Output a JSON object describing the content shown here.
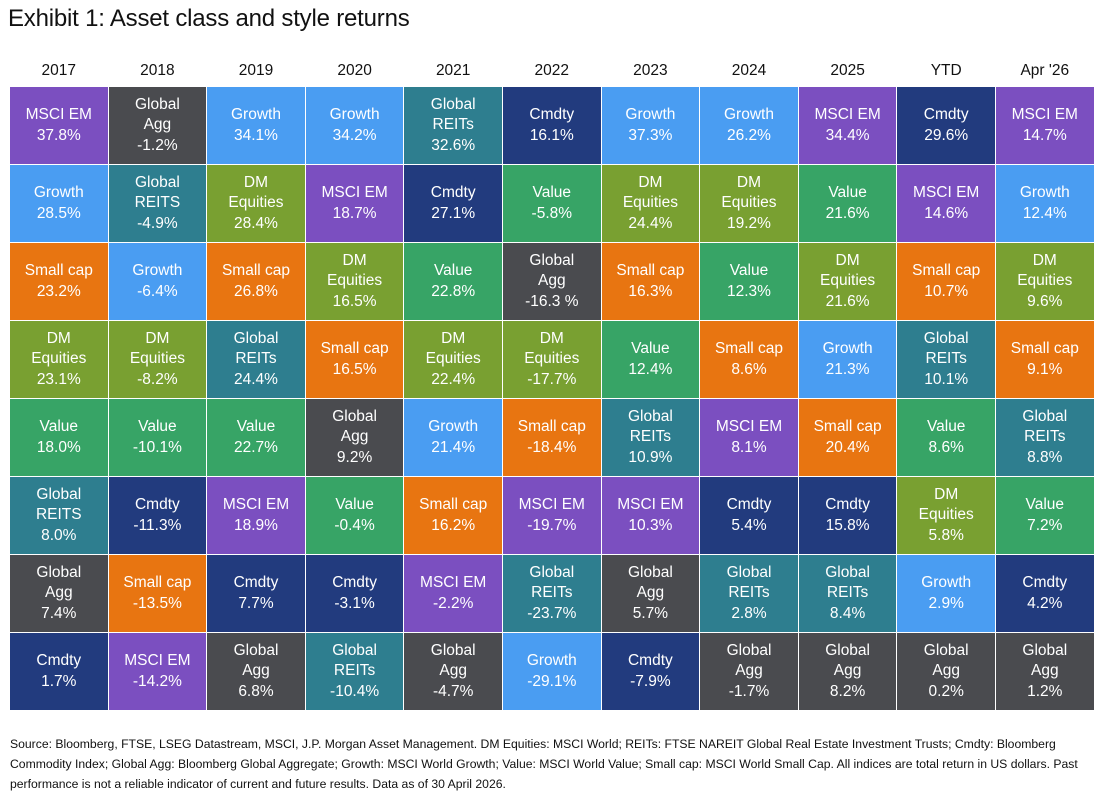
{
  "title": "Exhibit 1: Asset class and style returns",
  "footnote": "Source: Bloomberg, FTSE, LSEG Datastream, MSCI, J.P. Morgan Asset Management. DM Equities: MSCI World; REITs: FTSE NAREIT Global Real Estate Investment Trusts; Cmdty: Bloomberg Commodity Index; Global Agg: Bloomberg Global Aggregate; Growth: MSCI World Growth; Value: MSCI World Value; Small cap: MSCI World Small Cap. All indices are total return in US dollars. Past performance is not a reliable indicator of current and future results. Data as of 30 April 2026.",
  "colors": {
    "MSCI EM": "#7b4fc0",
    "Global Agg": "#4a4b4f",
    "Growth": "#4a9df2",
    "Global REITs": "#2e7e8f",
    "Cmdty": "#223b7e",
    "DM Equities": "#79a031",
    "Small cap": "#e87511",
    "Value": "#37a466"
  },
  "chart_data": {
    "type": "table",
    "columns": [
      "2017",
      "2018",
      "2019",
      "2020",
      "2021",
      "2022",
      "2023",
      "2024",
      "2025",
      "YTD",
      "Apr '26"
    ],
    "cells": [
      [
        {
          "asset": "MSCI EM",
          "lines": [
            "MSCI EM"
          ],
          "value": "37.8%"
        },
        {
          "asset": "Growth",
          "lines": [
            "Growth"
          ],
          "value": "28.5%"
        },
        {
          "asset": "Small cap",
          "lines": [
            "Small cap"
          ],
          "value": "23.2%"
        },
        {
          "asset": "DM Equities",
          "lines": [
            "DM",
            "Equities"
          ],
          "value": "23.1%"
        },
        {
          "asset": "Value",
          "lines": [
            "Value"
          ],
          "value": "18.0%"
        },
        {
          "asset": "Global REITs",
          "lines": [
            "Global",
            "REITS"
          ],
          "value": "8.0%"
        },
        {
          "asset": "Global Agg",
          "lines": [
            "Global",
            "Agg"
          ],
          "value": "7.4%"
        },
        {
          "asset": "Cmdty",
          "lines": [
            "Cmdty"
          ],
          "value": "1.7%"
        }
      ],
      [
        {
          "asset": "Global Agg",
          "lines": [
            "Global",
            "Agg"
          ],
          "value": "-1.2%"
        },
        {
          "asset": "Global REITs",
          "lines": [
            "Global",
            "REITS"
          ],
          "value": "-4.9%"
        },
        {
          "asset": "Growth",
          "lines": [
            "Growth"
          ],
          "value": "-6.4%"
        },
        {
          "asset": "DM Equities",
          "lines": [
            "DM",
            "Equities"
          ],
          "value": "-8.2%"
        },
        {
          "asset": "Value",
          "lines": [
            "Value"
          ],
          "value": "-10.1%"
        },
        {
          "asset": "Cmdty",
          "lines": [
            "Cmdty"
          ],
          "value": "-11.3%"
        },
        {
          "asset": "Small cap",
          "lines": [
            "Small cap"
          ],
          "value": "-13.5%"
        },
        {
          "asset": "MSCI EM",
          "lines": [
            "MSCI EM"
          ],
          "value": "-14.2%"
        }
      ],
      [
        {
          "asset": "Growth",
          "lines": [
            "Growth"
          ],
          "value": "34.1%"
        },
        {
          "asset": "DM Equities",
          "lines": [
            "DM",
            "Equities"
          ],
          "value": "28.4%"
        },
        {
          "asset": "Small cap",
          "lines": [
            "Small cap"
          ],
          "value": "26.8%"
        },
        {
          "asset": "Global REITs",
          "lines": [
            "Global",
            "REITs"
          ],
          "value": "24.4%"
        },
        {
          "asset": "Value",
          "lines": [
            "Value"
          ],
          "value": "22.7%"
        },
        {
          "asset": "MSCI EM",
          "lines": [
            "MSCI EM"
          ],
          "value": "18.9%"
        },
        {
          "asset": "Cmdty",
          "lines": [
            "Cmdty"
          ],
          "value": "7.7%"
        },
        {
          "asset": "Global Agg",
          "lines": [
            "Global",
            "Agg"
          ],
          "value": "6.8%"
        }
      ],
      [
        {
          "asset": "Growth",
          "lines": [
            "Growth"
          ],
          "value": "34.2%"
        },
        {
          "asset": "MSCI EM",
          "lines": [
            "MSCI EM"
          ],
          "value": "18.7%"
        },
        {
          "asset": "DM Equities",
          "lines": [
            "DM",
            "Equities"
          ],
          "value": "16.5%"
        },
        {
          "asset": "Small cap",
          "lines": [
            "Small cap"
          ],
          "value": "16.5%"
        },
        {
          "asset": "Global Agg",
          "lines": [
            "Global",
            "Agg"
          ],
          "value": "9.2%"
        },
        {
          "asset": "Value",
          "lines": [
            "Value"
          ],
          "value": "-0.4%"
        },
        {
          "asset": "Cmdty",
          "lines": [
            "Cmdty"
          ],
          "value": "-3.1%"
        },
        {
          "asset": "Global REITs",
          "lines": [
            "Global",
            "REITs"
          ],
          "value": "-10.4%"
        }
      ],
      [
        {
          "asset": "Global REITs",
          "lines": [
            "Global",
            "REITs"
          ],
          "value": "32.6%"
        },
        {
          "asset": "Cmdty",
          "lines": [
            "Cmdty"
          ],
          "value": "27.1%"
        },
        {
          "asset": "Value",
          "lines": [
            "Value"
          ],
          "value": "22.8%"
        },
        {
          "asset": "DM Equities",
          "lines": [
            "DM",
            "Equities"
          ],
          "value": "22.4%"
        },
        {
          "asset": "Growth",
          "lines": [
            "Growth"
          ],
          "value": "21.4%"
        },
        {
          "asset": "Small cap",
          "lines": [
            "Small cap"
          ],
          "value": "16.2%"
        },
        {
          "asset": "MSCI EM",
          "lines": [
            "MSCI EM"
          ],
          "value": "-2.2%"
        },
        {
          "asset": "Global Agg",
          "lines": [
            "Global",
            "Agg"
          ],
          "value": "-4.7%"
        }
      ],
      [
        {
          "asset": "Cmdty",
          "lines": [
            "Cmdty"
          ],
          "value": "16.1%"
        },
        {
          "asset": "Value",
          "lines": [
            "Value"
          ],
          "value": "-5.8%"
        },
        {
          "asset": "Global Agg",
          "lines": [
            "Global",
            "Agg"
          ],
          "value": "-16.3 %"
        },
        {
          "asset": "DM Equities",
          "lines": [
            "DM",
            "Equities"
          ],
          "value": "-17.7%"
        },
        {
          "asset": "Small cap",
          "lines": [
            "Small cap"
          ],
          "value": "-18.4%"
        },
        {
          "asset": "MSCI EM",
          "lines": [
            "MSCI EM"
          ],
          "value": "-19.7%"
        },
        {
          "asset": "Global REITs",
          "lines": [
            "Global",
            "REITs"
          ],
          "value": "-23.7%"
        },
        {
          "asset": "Growth",
          "lines": [
            "Growth"
          ],
          "value": "-29.1%"
        }
      ],
      [
        {
          "asset": "Growth",
          "lines": [
            "Growth"
          ],
          "value": "37.3%"
        },
        {
          "asset": "DM Equities",
          "lines": [
            "DM",
            "Equities"
          ],
          "value": "24.4%"
        },
        {
          "asset": "Small cap",
          "lines": [
            "Small cap"
          ],
          "value": "16.3%"
        },
        {
          "asset": "Value",
          "lines": [
            "Value"
          ],
          "value": "12.4%"
        },
        {
          "asset": "Global REITs",
          "lines": [
            "Global",
            "REITs"
          ],
          "value": "10.9%"
        },
        {
          "asset": "MSCI EM",
          "lines": [
            "MSCI EM"
          ],
          "value": "10.3%"
        },
        {
          "asset": "Global Agg",
          "lines": [
            "Global",
            "Agg"
          ],
          "value": "5.7%"
        },
        {
          "asset": "Cmdty",
          "lines": [
            "Cmdty"
          ],
          "value": "-7.9%"
        }
      ],
      [
        {
          "asset": "Growth",
          "lines": [
            "Growth"
          ],
          "value": "26.2%"
        },
        {
          "asset": "DM Equities",
          "lines": [
            "DM",
            "Equities"
          ],
          "value": "19.2%"
        },
        {
          "asset": "Value",
          "lines": [
            "Value"
          ],
          "value": "12.3%"
        },
        {
          "asset": "Small cap",
          "lines": [
            "Small cap"
          ],
          "value": "8.6%"
        },
        {
          "asset": "MSCI EM",
          "lines": [
            "MSCI EM"
          ],
          "value": "8.1%"
        },
        {
          "asset": "Cmdty",
          "lines": [
            "Cmdty"
          ],
          "value": "5.4%"
        },
        {
          "asset": "Global REITs",
          "lines": [
            "Global",
            "REITs"
          ],
          "value": "2.8%"
        },
        {
          "asset": "Global Agg",
          "lines": [
            "Global",
            "Agg"
          ],
          "value": "-1.7%"
        }
      ],
      [
        {
          "asset": "MSCI EM",
          "lines": [
            "MSCI EM"
          ],
          "value": "34.4%"
        },
        {
          "asset": "Value",
          "lines": [
            "Value"
          ],
          "value": "21.6%"
        },
        {
          "asset": "DM Equities",
          "lines": [
            "DM",
            "Equities"
          ],
          "value": "21.6%"
        },
        {
          "asset": "Growth",
          "lines": [
            "Growth"
          ],
          "value": "21.3%"
        },
        {
          "asset": "Small cap",
          "lines": [
            "Small cap"
          ],
          "value": "20.4%"
        },
        {
          "asset": "Cmdty",
          "lines": [
            "Cmdty"
          ],
          "value": "15.8%"
        },
        {
          "asset": "Global REITs",
          "lines": [
            "Global",
            "REITs"
          ],
          "value": "8.4%"
        },
        {
          "asset": "Global Agg",
          "lines": [
            "Global",
            "Agg"
          ],
          "value": "8.2%"
        }
      ],
      [
        {
          "asset": "Cmdty",
          "lines": [
            "Cmdty"
          ],
          "value": "29.6%"
        },
        {
          "asset": "MSCI EM",
          "lines": [
            "MSCI EM"
          ],
          "value": "14.6%"
        },
        {
          "asset": "Small cap",
          "lines": [
            "Small cap"
          ],
          "value": "10.7%"
        },
        {
          "asset": "Global REITs",
          "lines": [
            "Global",
            "REITs"
          ],
          "value": "10.1%"
        },
        {
          "asset": "Value",
          "lines": [
            "Value"
          ],
          "value": "8.6%"
        },
        {
          "asset": "DM Equities",
          "lines": [
            "DM",
            "Equities"
          ],
          "value": "5.8%"
        },
        {
          "asset": "Growth",
          "lines": [
            "Growth"
          ],
          "value": "2.9%"
        },
        {
          "asset": "Global Agg",
          "lines": [
            "Global",
            "Agg"
          ],
          "value": "0.2%"
        }
      ],
      [
        {
          "asset": "MSCI EM",
          "lines": [
            "MSCI EM"
          ],
          "value": "14.7%"
        },
        {
          "asset": "Growth",
          "lines": [
            "Growth"
          ],
          "value": "12.4%"
        },
        {
          "asset": "DM Equities",
          "lines": [
            "DM",
            "Equities"
          ],
          "value": "9.6%"
        },
        {
          "asset": "Small cap",
          "lines": [
            "Small cap"
          ],
          "value": "9.1%"
        },
        {
          "asset": "Global REITs",
          "lines": [
            "Global",
            "REITs"
          ],
          "value": "8.8%"
        },
        {
          "asset": "Value",
          "lines": [
            "Value"
          ],
          "value": "7.2%"
        },
        {
          "asset": "Cmdty",
          "lines": [
            "Cmdty"
          ],
          "value": "4.2%"
        },
        {
          "asset": "Global Agg",
          "lines": [
            "Global",
            "Agg"
          ],
          "value": "1.2%"
        }
      ]
    ]
  }
}
